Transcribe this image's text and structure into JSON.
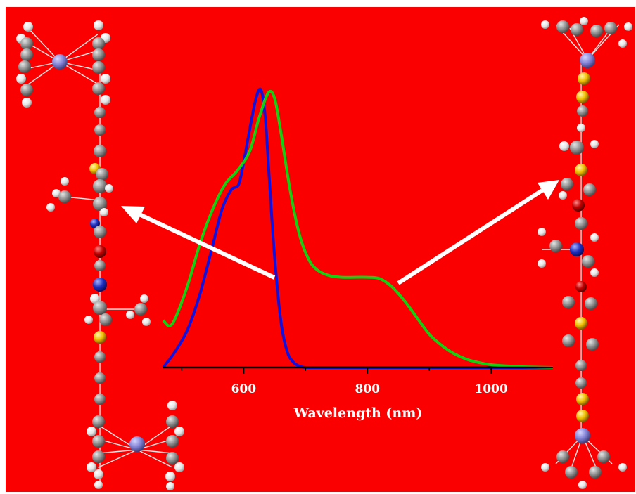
{
  "colors": {
    "background": "#fb0000",
    "axis": "#000000",
    "arrow": "#ffffff",
    "atom_carbon": "#8e8e8e",
    "atom_hydrogen": "#ededed",
    "atom_metal": "#8080d8",
    "atom_sulfur": "#f0c000",
    "atom_nitrogen": "#2030c0",
    "atom_oxygen": "#c00000"
  },
  "chart_data": {
    "type": "line",
    "title": "",
    "xlabel": "Wavelength (nm)",
    "ylabel": "",
    "xlim": [
      470,
      1100
    ],
    "ylim": [
      0,
      1
    ],
    "x_ticks": [
      600,
      800,
      1000
    ],
    "x_tick_labels": [
      "600",
      "800",
      "1000"
    ],
    "x_minor_ticks": [
      500,
      700,
      900
    ],
    "grid": false,
    "legend": "none",
    "series": [
      {
        "color": "#1010e0",
        "x": [
          470,
          490,
          510,
          530,
          550,
          565,
          580,
          592,
          600,
          610,
          620,
          628,
          635,
          642,
          650,
          660,
          670,
          680,
          690,
          700,
          720,
          760,
          850,
          1100
        ],
        "y": [
          0.0,
          0.06,
          0.14,
          0.27,
          0.44,
          0.57,
          0.64,
          0.66,
          0.74,
          0.86,
          0.97,
          1.0,
          0.9,
          0.66,
          0.4,
          0.17,
          0.06,
          0.02,
          0.005,
          0.0,
          0.0,
          0.0,
          0.0,
          0.0
        ]
      },
      {
        "color": "#12d012",
        "x": [
          470,
          480,
          490,
          510,
          530,
          550,
          570,
          590,
          610,
          625,
          640,
          650,
          660,
          675,
          690,
          705,
          720,
          740,
          760,
          780,
          800,
          820,
          840,
          860,
          880,
          900,
          920,
          940,
          960,
          980,
          1000,
          1030,
          1060,
          1100
        ],
        "y": [
          0.17,
          0.15,
          0.18,
          0.3,
          0.45,
          0.57,
          0.66,
          0.71,
          0.78,
          0.9,
          0.99,
          0.97,
          0.85,
          0.64,
          0.48,
          0.39,
          0.35,
          0.33,
          0.325,
          0.325,
          0.325,
          0.32,
          0.29,
          0.24,
          0.18,
          0.12,
          0.08,
          0.05,
          0.03,
          0.018,
          0.01,
          0.005,
          0.002,
          0.0
        ]
      }
    ]
  }
}
